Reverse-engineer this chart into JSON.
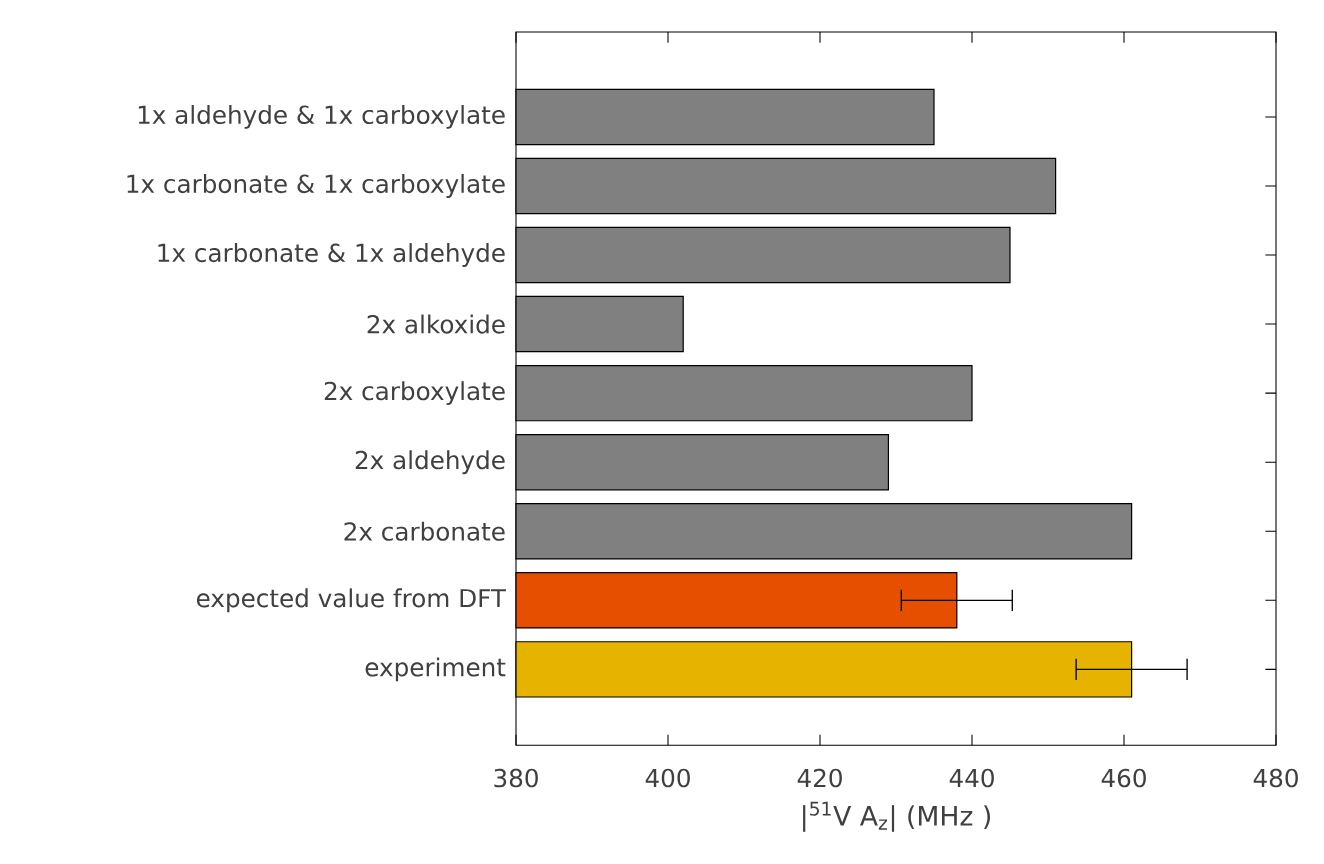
{
  "chart_data": {
    "type": "bar",
    "orientation": "horizontal",
    "categories": [
      "1x aldehyde & 1x carboxylate",
      "1x carbonate & 1x carboxylate",
      "1x carbonate & 1x aldehyde",
      "2x alkoxide",
      "2x carboxylate",
      "2x aldehyde",
      "2x carbonate",
      "expected value from DFT",
      "experiment"
    ],
    "values": [
      435,
      451,
      445,
      402,
      440,
      429,
      461,
      438,
      461
    ],
    "colors": [
      "#808080",
      "#808080",
      "#808080",
      "#808080",
      "#808080",
      "#808080",
      "#808080",
      "#e64e00",
      "#e6b400"
    ],
    "errors": [
      null,
      null,
      null,
      null,
      null,
      null,
      null,
      7.3,
      7.3
    ],
    "xlabel": "|$^{51}$V A$_{z}$| (MHz )",
    "xlim": [
      380,
      480
    ],
    "xticks": [
      380,
      400,
      420,
      440,
      460,
      480
    ],
    "grid": false
  }
}
